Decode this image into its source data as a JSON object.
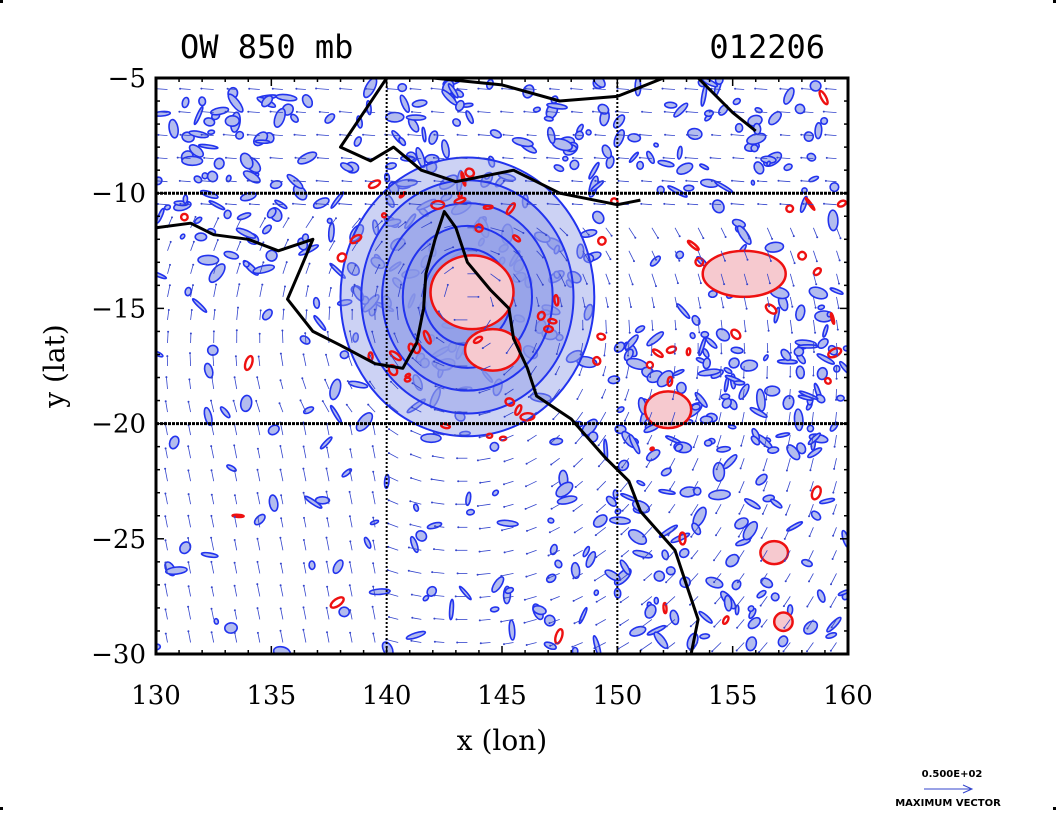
{
  "title_left": "OW 850 mb",
  "title_right": "012206",
  "ref_vector": {
    "magnitude_label": "0.500E+02",
    "caption": "MAXIMUM VECTOR"
  },
  "chart_data": {
    "type": "contour",
    "xlabel": "x (lon)",
    "ylabel": "y (lat)",
    "xlim": [
      130,
      160
    ],
    "ylim": [
      -30,
      -5
    ],
    "xticks": [
      "130",
      "135",
      "140",
      "145",
      "150",
      "155",
      "160"
    ],
    "yticks": [
      "−5",
      "−10",
      "−15",
      "−20",
      "−25",
      "−30"
    ],
    "grid": {
      "x": [
        140,
        150
      ],
      "y": [
        -10,
        -20
      ]
    },
    "colors": {
      "negative_fill": "#b3bcee",
      "negative_fill_dark": "#8e9be6",
      "negative_line": "#2233ee",
      "positive_fill": "#f6c9cf",
      "positive_line": "#ee1111",
      "vectors": "#3344cc",
      "coastline": "#000000"
    },
    "coastline": [
      [
        [
          140.0,
          -5.0
        ],
        [
          139.0,
          -6.5
        ],
        [
          138.0,
          -8.0
        ],
        [
          139.3,
          -8.6
        ],
        [
          140.3,
          -8.0
        ],
        [
          141.5,
          -9.0
        ],
        [
          143.0,
          -9.5
        ],
        [
          145.5,
          -9.0
        ],
        [
          147.5,
          -10.0
        ],
        [
          150.0,
          -10.5
        ],
        [
          151.0,
          -10.3
        ]
      ],
      [
        [
          153.5,
          -5.0
        ],
        [
          155.0,
          -6.5
        ],
        [
          156.0,
          -7.3
        ]
      ],
      [
        [
          142.0,
          -5.0
        ],
        [
          145.0,
          -5.3
        ],
        [
          147.5,
          -6.0
        ],
        [
          150.0,
          -5.8
        ],
        [
          152.0,
          -5.0
        ]
      ],
      [
        [
          130.0,
          -11.5
        ],
        [
          131.5,
          -11.3
        ],
        [
          132.5,
          -11.8
        ],
        [
          134.0,
          -12.0
        ],
        [
          135.3,
          -12.5
        ],
        [
          136.8,
          -12.0
        ],
        [
          136.3,
          -13.2
        ],
        [
          135.7,
          -14.6
        ],
        [
          136.8,
          -16.0
        ],
        [
          138.0,
          -16.6
        ],
        [
          139.5,
          -17.4
        ],
        [
          140.7,
          -17.6
        ],
        [
          141.3,
          -16.5
        ],
        [
          141.6,
          -15.0
        ],
        [
          141.7,
          -13.5
        ],
        [
          142.1,
          -12.0
        ],
        [
          142.5,
          -10.8
        ],
        [
          143.0,
          -11.5
        ],
        [
          143.5,
          -13.0
        ],
        [
          144.5,
          -14.2
        ],
        [
          145.3,
          -15.0
        ],
        [
          145.5,
          -16.3
        ],
        [
          146.1,
          -17.6
        ],
        [
          146.5,
          -18.8
        ],
        [
          148.0,
          -19.8
        ],
        [
          149.5,
          -21.5
        ],
        [
          150.5,
          -22.5
        ],
        [
          151.0,
          -23.8
        ],
        [
          152.5,
          -25.5
        ],
        [
          153.0,
          -27.0
        ],
        [
          153.5,
          -28.5
        ],
        [
          153.2,
          -30.0
        ]
      ]
    ],
    "positive_regions": [
      {
        "cx": 143.7,
        "cy": -14.3,
        "rx": 1.8,
        "ry": 1.6
      },
      {
        "cx": 144.6,
        "cy": -16.8,
        "rx": 1.2,
        "ry": 0.9
      },
      {
        "cx": 152.2,
        "cy": -19.4,
        "rx": 1.0,
        "ry": 0.8
      },
      {
        "cx": 155.5,
        "cy": -13.5,
        "rx": 1.8,
        "ry": 1.0
      },
      {
        "cx": 156.8,
        "cy": -25.6,
        "rx": 0.6,
        "ry": 0.5
      },
      {
        "cx": 157.2,
        "cy": -28.6,
        "rx": 0.4,
        "ry": 0.4
      }
    ],
    "vortex": {
      "center": [
        143.5,
        -14.5
      ],
      "radius": 5.5
    }
  }
}
